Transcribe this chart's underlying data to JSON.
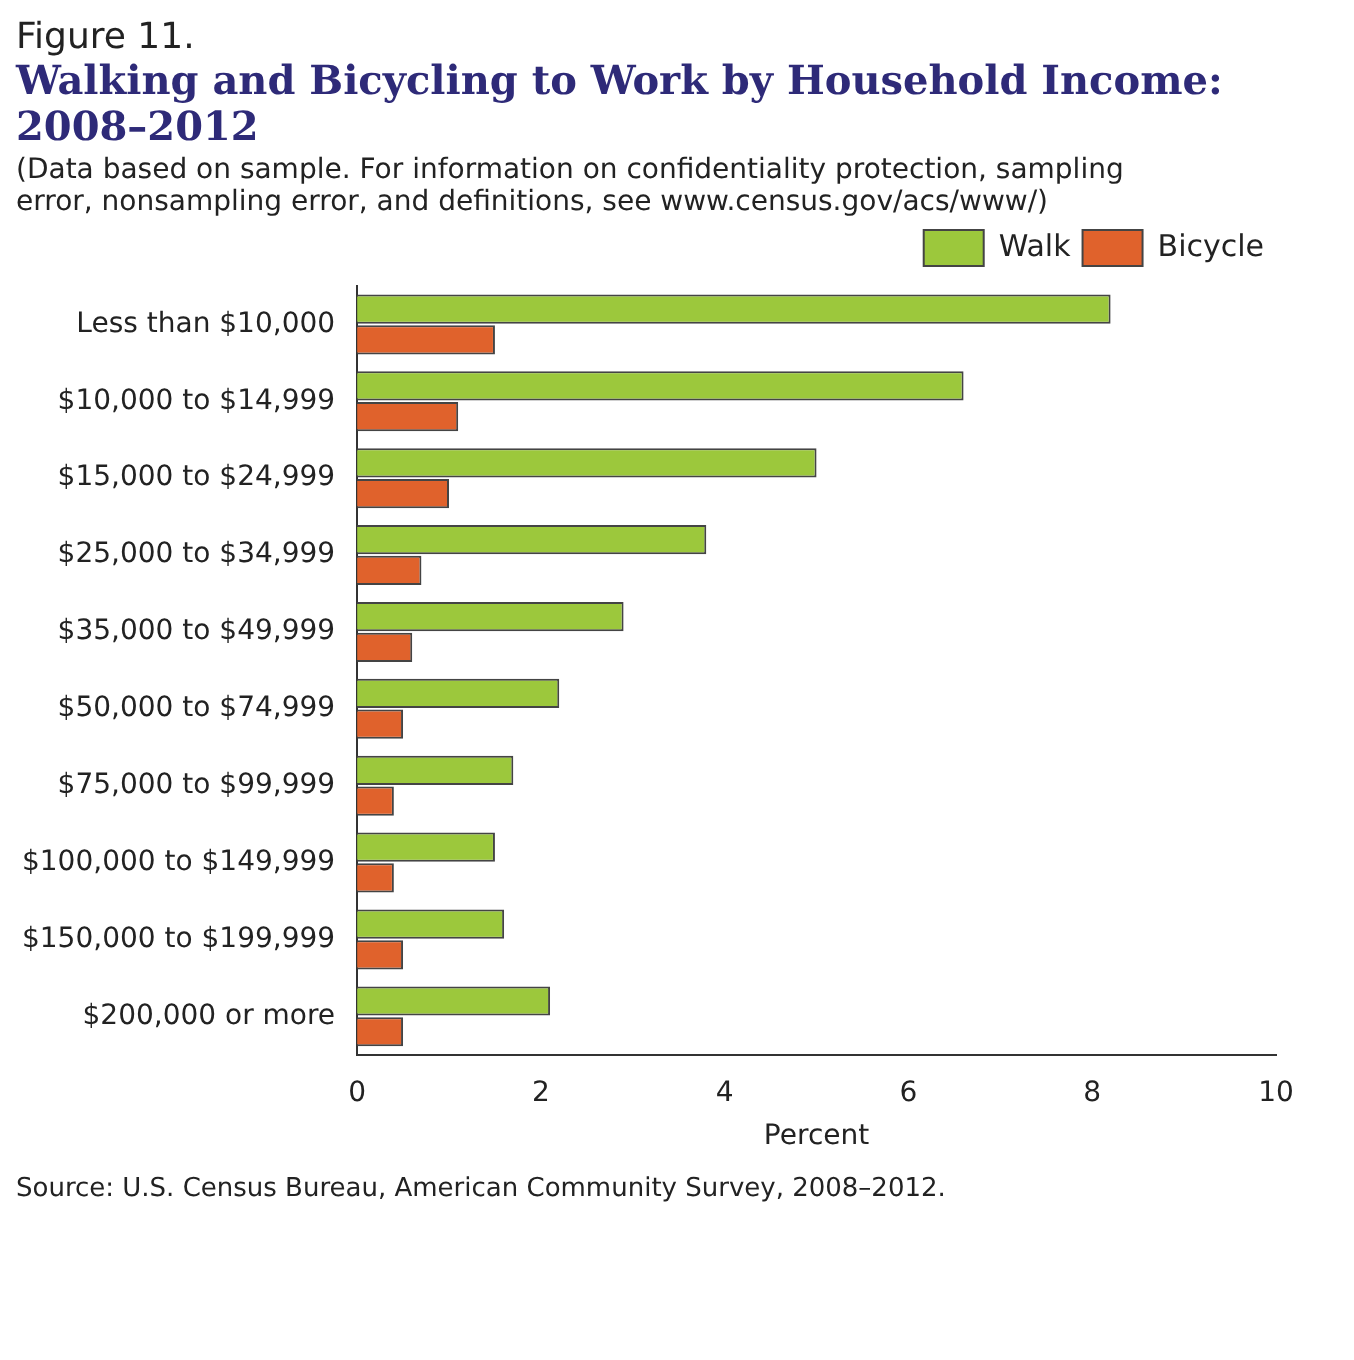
{
  "chart_data": {
    "type": "bar",
    "orientation": "horizontal",
    "title": "Walking and Bicycling to Work by Household Income: 2008–2012",
    "subtitle": "(Data based on sample. For information on confidentiality protection, sampling error, nonsampling error, and definitions, see www.census.gov/acs/www/)",
    "annotations": [
      "Figure 11.",
      "Source: U.S. Census Bureau, American Community Survey, 2008–2012."
    ],
    "xlabel": "Percent",
    "categories": [
      "Less than $10,000",
      "$10,000 to $14,999",
      "$15,000 to $24,999",
      "$25,000 to $34,999",
      "$35,000 to $49,999",
      "$50,000 to $74,999",
      "$75,000 to $99,999",
      "$100,000 to $149,999",
      "$150,000 to $199,999",
      "$200,000 or more"
    ],
    "series": [
      {
        "name": "Walk",
        "color": "#9cc83c",
        "values": [
          8.2,
          6.6,
          5.0,
          3.8,
          2.9,
          2.2,
          1.7,
          1.5,
          1.6,
          2.1
        ]
      },
      {
        "name": "Bicycle",
        "color": "#e0622c",
        "values": [
          1.5,
          1.1,
          1.0,
          0.7,
          0.6,
          0.5,
          0.4,
          0.4,
          0.5,
          0.5
        ]
      }
    ],
    "xlim": [
      0,
      10
    ],
    "xticks": [
      0,
      2,
      4,
      6,
      8,
      10
    ],
    "grid": false,
    "legend": "top right"
  }
}
